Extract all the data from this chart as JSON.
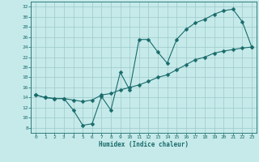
{
  "title": "",
  "xlabel": "Humidex (Indice chaleur)",
  "background_color": "#c6eaea",
  "grid_color": "#9fc8c8",
  "line_color": "#1a6b6b",
  "xlim": [
    -0.5,
    23.5
  ],
  "ylim": [
    7,
    33
  ],
  "yticks": [
    8,
    10,
    12,
    14,
    16,
    18,
    20,
    22,
    24,
    26,
    28,
    30,
    32
  ],
  "xticks": [
    0,
    1,
    2,
    3,
    4,
    5,
    6,
    7,
    8,
    9,
    10,
    11,
    12,
    13,
    14,
    15,
    16,
    17,
    18,
    19,
    20,
    21,
    22,
    23
  ],
  "curve1_x": [
    0,
    1,
    2,
    3,
    4,
    5,
    6,
    7,
    8,
    9,
    10,
    11,
    12,
    13,
    14,
    15,
    16,
    17,
    18,
    19,
    20,
    21,
    22,
    23
  ],
  "curve1_y": [
    14.5,
    14.0,
    13.8,
    13.8,
    11.5,
    8.5,
    8.8,
    14.2,
    11.5,
    19.0,
    15.5,
    25.5,
    25.5,
    23.0,
    20.8,
    25.5,
    27.5,
    28.8,
    29.5,
    30.5,
    31.2,
    31.5,
    29.0,
    24.0
  ],
  "curve2_x": [
    0,
    1,
    2,
    3,
    4,
    5,
    6,
    7,
    8,
    9,
    10,
    11,
    12,
    13,
    14,
    15,
    16,
    17,
    18,
    19,
    20,
    21,
    22,
    23
  ],
  "curve2_y": [
    14.5,
    14.0,
    13.8,
    13.8,
    13.5,
    13.2,
    13.5,
    14.5,
    14.8,
    15.5,
    16.0,
    16.5,
    17.2,
    18.0,
    18.5,
    19.5,
    20.5,
    21.5,
    22.0,
    22.8,
    23.2,
    23.5,
    23.8,
    24.0
  ],
  "marker_size": 2.5
}
